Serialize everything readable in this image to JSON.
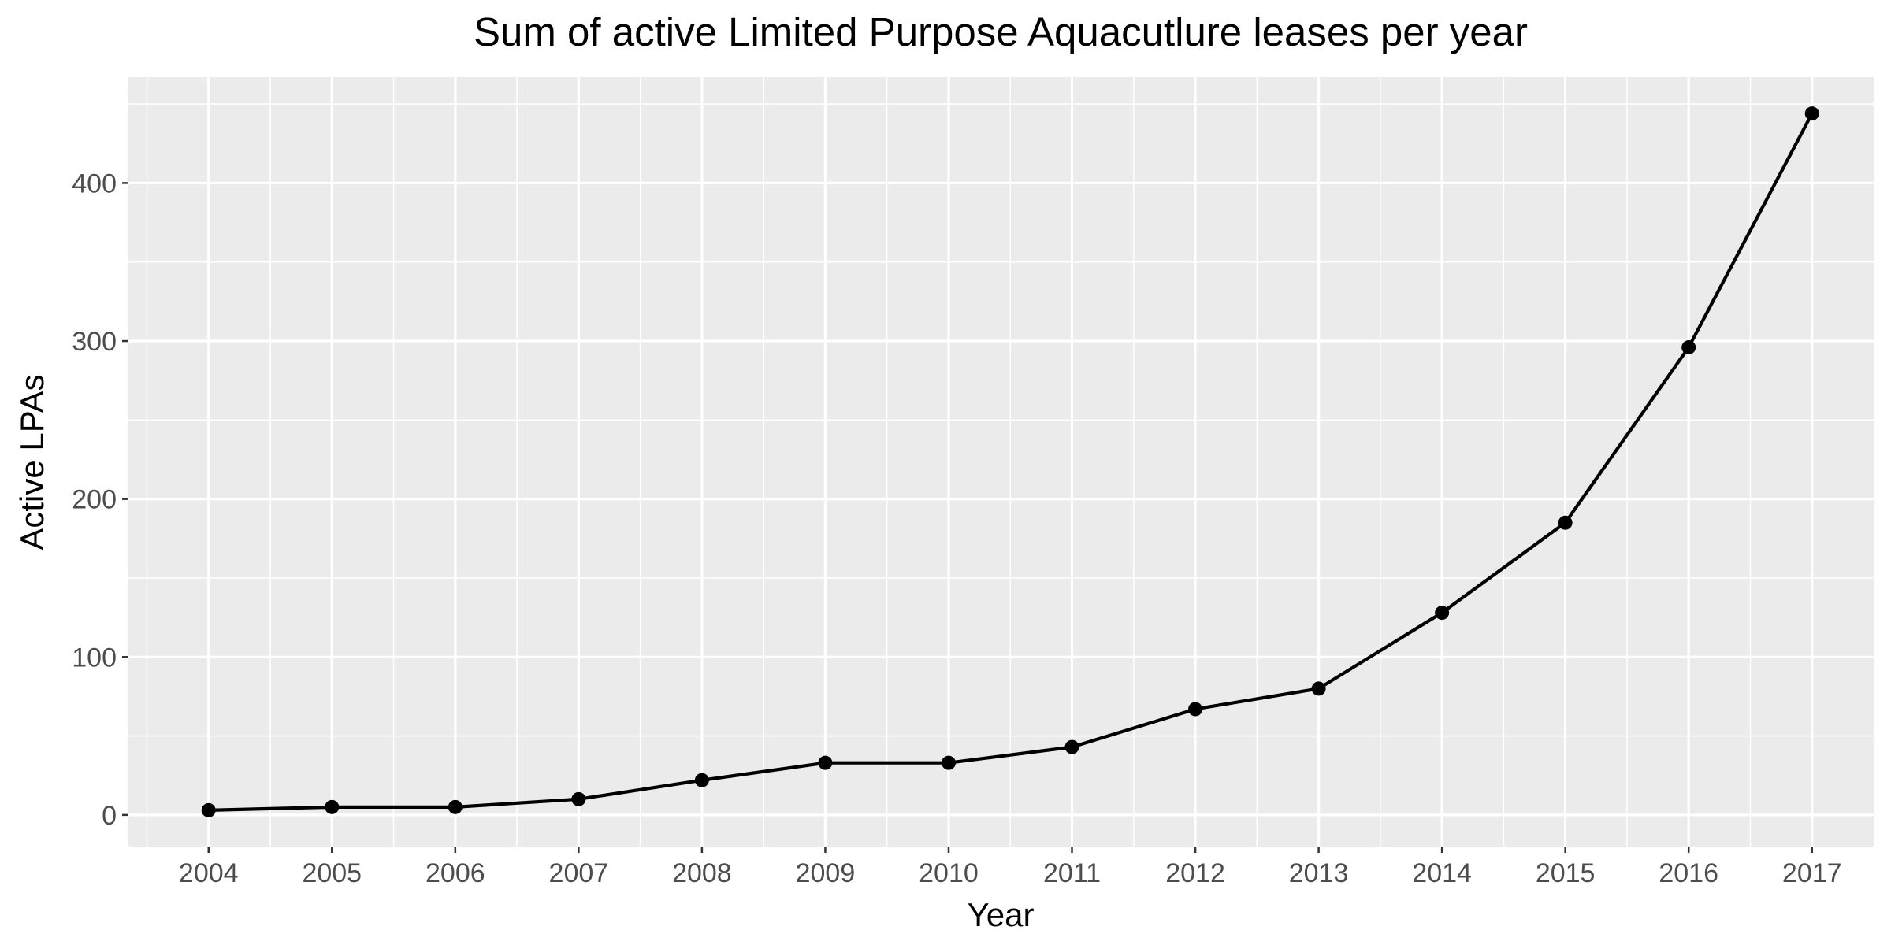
{
  "chart_data": {
    "type": "line",
    "title": "Sum of active Limited Purpose Aquacutlure leases per year",
    "xlabel": "Year",
    "ylabel": "Active LPAs",
    "x": [
      2004,
      2005,
      2006,
      2007,
      2008,
      2009,
      2010,
      2011,
      2012,
      2013,
      2014,
      2015,
      2016,
      2017
    ],
    "x_tick_labels": [
      "2004",
      "2005",
      "2006",
      "2007",
      "2008",
      "2009",
      "2010",
      "2011",
      "2012",
      "2013",
      "2014",
      "2015",
      "2016",
      "2017"
    ],
    "y_ticks": [
      0,
      100,
      200,
      300,
      400
    ],
    "y_tick_labels": [
      "0",
      "100",
      "200",
      "300",
      "400"
    ],
    "series": [
      {
        "values": [
          3,
          5,
          5,
          10,
          22,
          33,
          33,
          43,
          67,
          80,
          128,
          185,
          296,
          444
        ]
      }
    ],
    "xlim": [
      2003.35,
      2017.5
    ],
    "ylim": [
      -20,
      467
    ],
    "grid": true,
    "legend": "none",
    "colors": {
      "panel_background": "#ebebeb",
      "grid": "#ffffff",
      "line": "#000000",
      "points": "#000000",
      "tick_text": "#4d4d4d",
      "tick_marks": "#333333"
    }
  }
}
